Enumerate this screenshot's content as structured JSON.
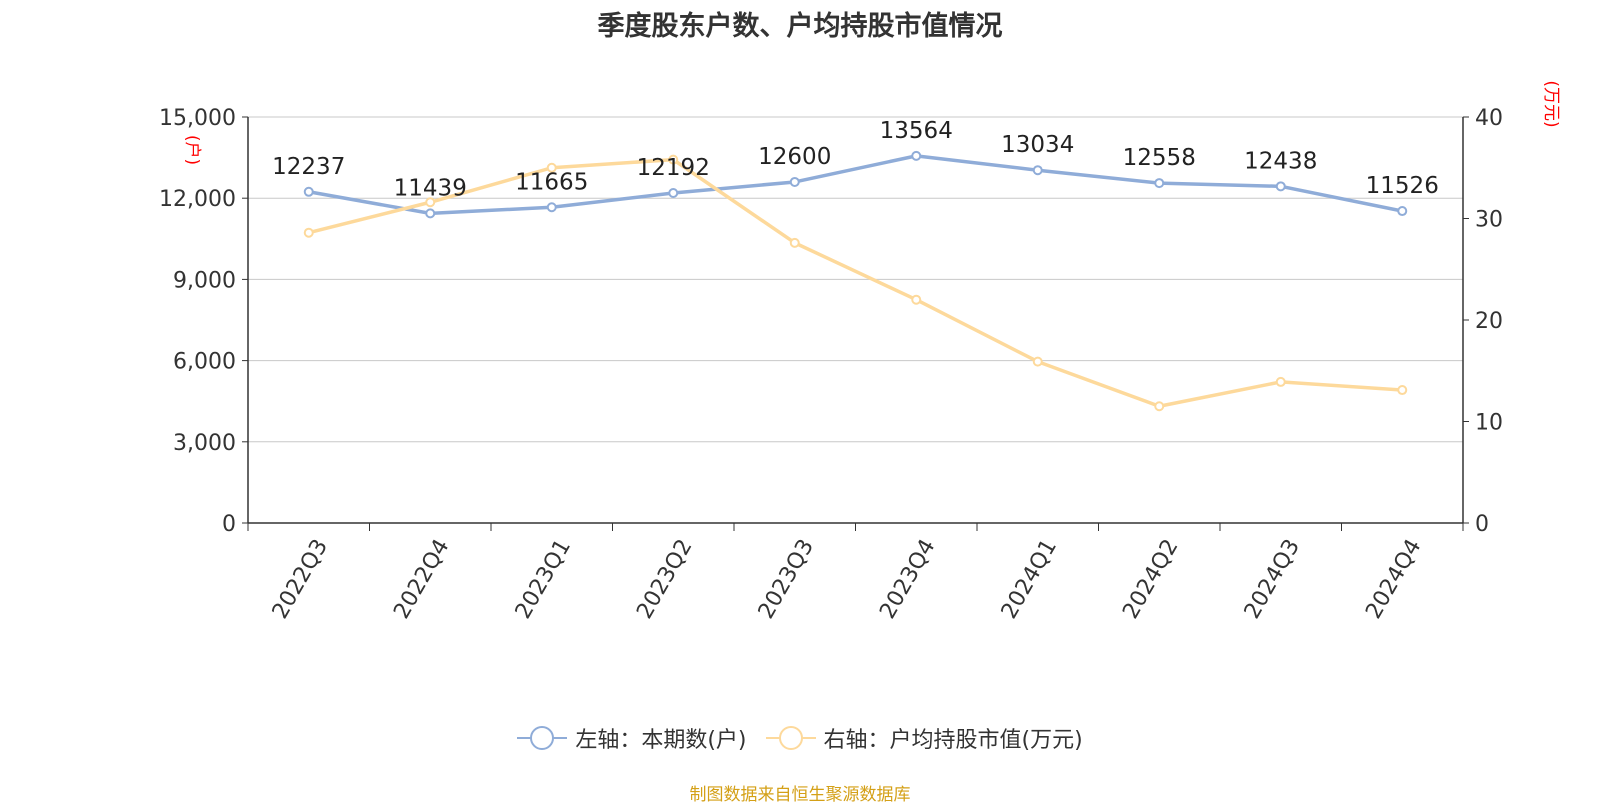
{
  "colors": {
    "series_left": "#8facd8",
    "series_right": "#fdd99b",
    "unit": "#ff0000",
    "source": "#d4a017",
    "grid": "#c8c8c8",
    "axis": "#333333"
  },
  "chart_data": {
    "type": "line",
    "title": "季度股东户数、户均持股市值情况",
    "categories": [
      "2022Q3",
      "2022Q4",
      "2023Q1",
      "2023Q2",
      "2023Q3",
      "2023Q4",
      "2024Q1",
      "2024Q2",
      "2024Q3",
      "2024Q4"
    ],
    "y_left": {
      "unit": "(户)",
      "min": 0,
      "max": 15000,
      "ticks": [
        "0",
        "3,000",
        "6,000",
        "9,000",
        "12,000",
        "15,000"
      ]
    },
    "y_right": {
      "unit": "(万元)",
      "min": 0,
      "max": 40,
      "ticks": [
        "0",
        "10",
        "20",
        "30",
        "40"
      ]
    },
    "grid": true,
    "legend_position": "bottom",
    "series": [
      {
        "name": "左轴：本期数(户)",
        "axis": "left",
        "values": [
          12237,
          11439,
          11665,
          12192,
          12600,
          13564,
          13034,
          12558,
          12438,
          11526
        ],
        "labels": [
          "12237",
          "11439",
          "11665",
          "12192",
          "12600",
          "13564",
          "13034",
          "12558",
          "12438",
          "11526"
        ]
      },
      {
        "name": "右轴：户均持股市值(万元)",
        "axis": "right",
        "values": [
          28.6,
          31.6,
          35.0,
          35.8,
          27.6,
          22.0,
          15.9,
          11.5,
          13.9,
          13.1
        ]
      }
    ]
  },
  "source": "制图数据来自恒生聚源数据库"
}
